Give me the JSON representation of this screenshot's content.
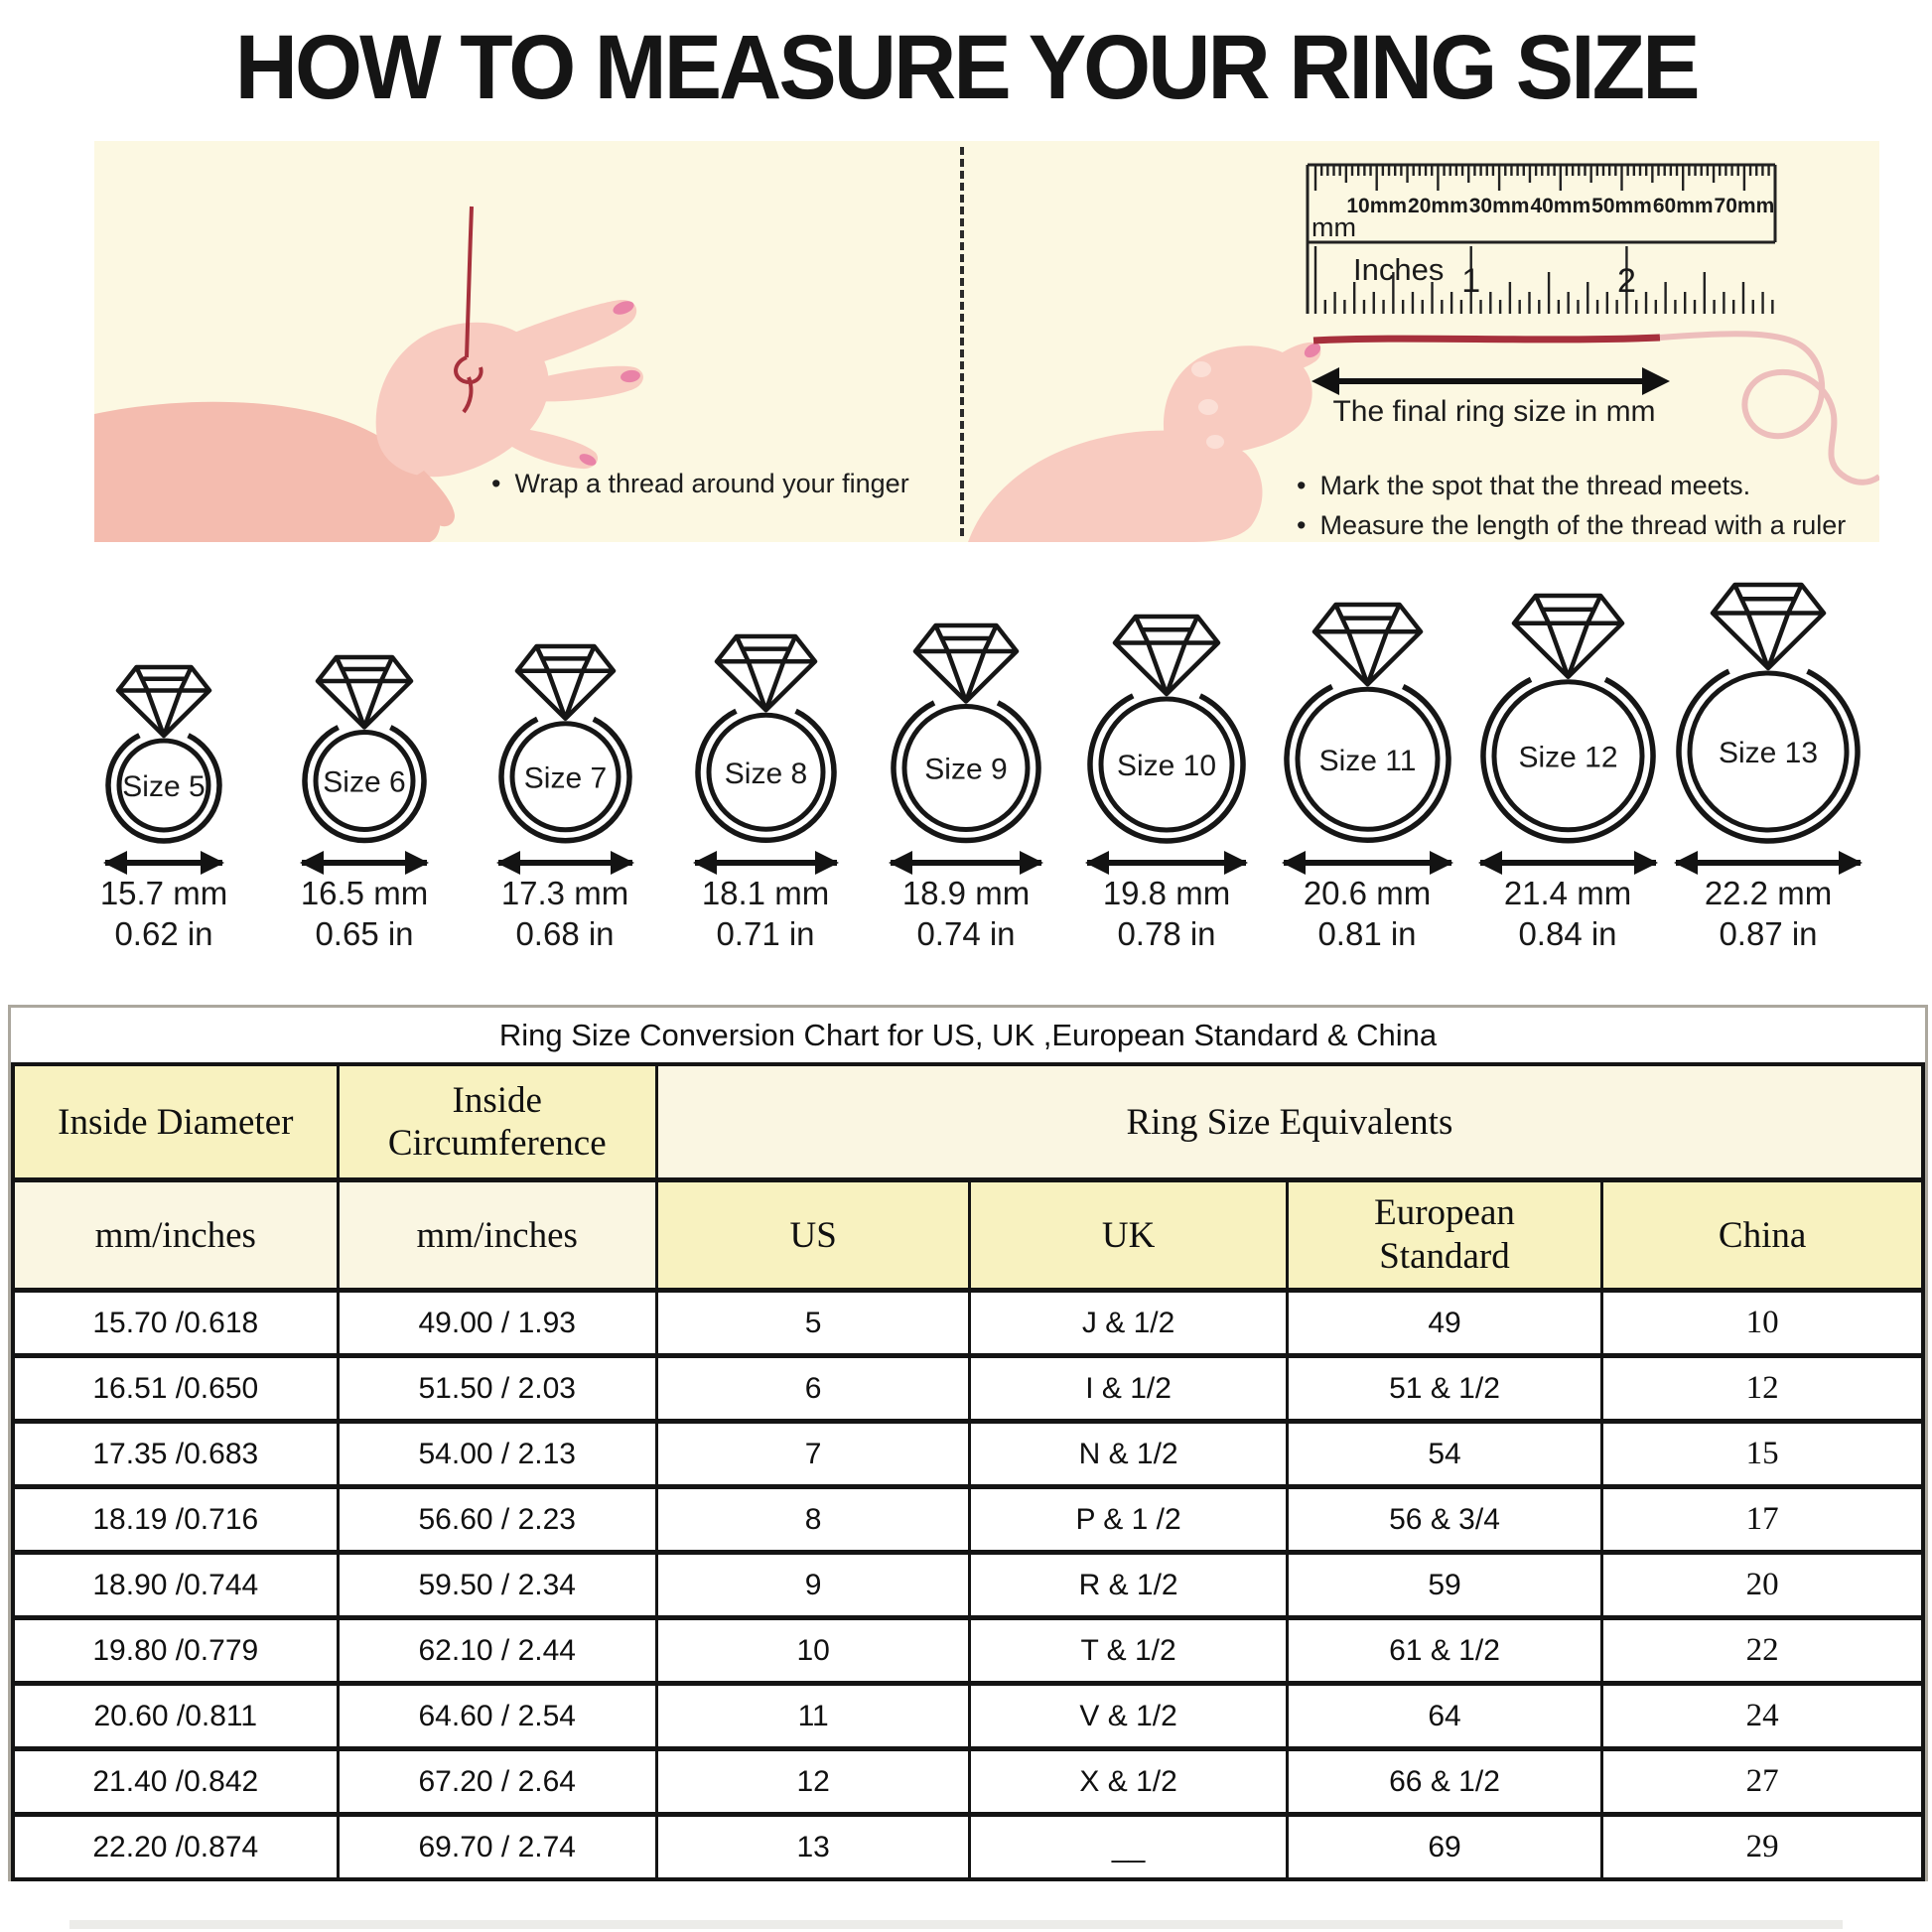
{
  "title": "HOW TO MEASURE YOUR RING SIZE",
  "steps": {
    "left_bullet": "Wrap a thread around your finger",
    "right_bullets": [
      "Mark the spot that the thread meets.",
      "Measure the length of the thread with a ruler"
    ],
    "ruler": {
      "mm_labels": [
        "10mm",
        "20mm",
        "30mm",
        "40mm",
        "50mm",
        "60mm",
        "70mm"
      ],
      "mm_unit": "mm",
      "inches_label": "Inches",
      "inch_numbers": [
        "1",
        "2"
      ],
      "arrow_label": "The final ring size in mm"
    }
  },
  "rings": [
    {
      "label": "Size 5",
      "mm": "15.7 mm",
      "inch": "0.62 in"
    },
    {
      "label": "Size 6",
      "mm": "16.5 mm",
      "inch": "0.65 in"
    },
    {
      "label": "Size 7",
      "mm": "17.3 mm",
      "inch": "0.68 in"
    },
    {
      "label": "Size 8",
      "mm": "18.1 mm",
      "inch": "0.71 in"
    },
    {
      "label": "Size 9",
      "mm": "18.9 mm",
      "inch": "0.74 in"
    },
    {
      "label": "Size 10",
      "mm": "19.8 mm",
      "inch": "0.78 in"
    },
    {
      "label": "Size 11",
      "mm": "20.6 mm",
      "inch": "0.81 in"
    },
    {
      "label": "Size 12",
      "mm": "21.4 mm",
      "inch": "0.84 in"
    },
    {
      "label": "Size 13",
      "mm": "22.2 mm",
      "inch": "0.87 in"
    }
  ],
  "table": {
    "title": "Ring Size Conversion Chart for US, UK ,European Standard & China",
    "header": {
      "inside_diameter": "Inside Diameter",
      "inside_circumference": "Inside Circumference",
      "equivalents": "Ring Size Equivalents",
      "unit_diameter": "mm/inches",
      "unit_circumference": "mm/inches",
      "us": "US",
      "uk": "UK",
      "euro": "European Standard",
      "china": "China"
    },
    "rows": [
      [
        "15.70 /0.618",
        "49.00 / 1.93",
        "5",
        "J & 1/2",
        "49",
        "10"
      ],
      [
        "16.51 /0.650",
        "51.50 / 2.03",
        "6",
        "I & 1/2",
        "51 & 1/2",
        "12"
      ],
      [
        "17.35 /0.683",
        "54.00 / 2.13",
        "7",
        "N & 1/2",
        "54",
        "15"
      ],
      [
        "18.19 /0.716",
        "56.60 / 2.23",
        "8",
        "P & 1 /2",
        "56 & 3/4",
        "17"
      ],
      [
        "18.90 /0.744",
        "59.50 / 2.34",
        "9",
        "R & 1/2",
        "59",
        "20"
      ],
      [
        "19.80 /0.779",
        "62.10 / 2.44",
        "10",
        "T & 1/2",
        "61 & 1/2",
        "22"
      ],
      [
        "20.60 /0.811",
        "64.60 / 2.54",
        "11",
        "V & 1/2",
        "64",
        "24"
      ],
      [
        "21.40 /0.842",
        "67.20 / 2.64",
        "12",
        "X & 1/2",
        "66 & 1/2",
        "27"
      ],
      [
        "22.20 /0.874",
        "69.70 / 2.74",
        "13",
        "__",
        "69",
        "29"
      ]
    ]
  },
  "colors": {
    "panel_cream": "#FCF8E2",
    "table_yellow": "#F8F2C0",
    "table_cream": "#FAF6E2",
    "skin": "#F8CBC0",
    "skin_dark": "#F4BCAF",
    "nail_pink": "#E983A7",
    "thread_red": "#A6303C",
    "thread_light": "#EDBEBC",
    "ink": "#151515"
  }
}
